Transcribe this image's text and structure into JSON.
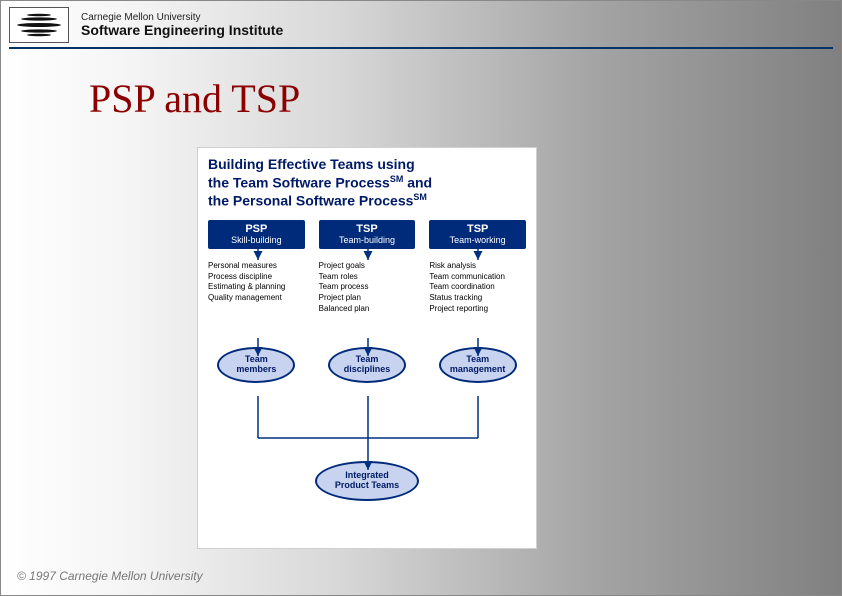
{
  "header": {
    "university": "Carnegie Mellon University",
    "institute": "Software Engineering Institute"
  },
  "title": "PSP and TSP",
  "footer": "© 1997 Carnegie Mellon University",
  "diagram": {
    "title_line1": "Building Effective Teams using",
    "title_line2_a": "the Team Software Process",
    "title_line2_sup": "SM",
    "title_line2_b": " and",
    "title_line3_a": "the Personal Software Process",
    "title_line3_sup": "SM",
    "colors": {
      "header_bg": "#002a7a",
      "header_fg": "#ffffff",
      "ellipse_fill": "#c7d3ef",
      "ellipse_border": "#002a7a",
      "title_color": "#001a66",
      "connector": "#003080"
    },
    "columns": [
      {
        "hb": "PSP",
        "hs": "Skill-building",
        "desc": "Personal measures\nProcess discipline\nEstimating & planning\nQuality management",
        "ellipse": "Team\nmembers"
      },
      {
        "hb": "TSP",
        "hs": "Team-building",
        "desc": "Project goals\nTeam roles\nTeam process\nProject plan\nBalanced plan",
        "ellipse": "Team\ndisciplines"
      },
      {
        "hb": "TSP",
        "hs": "Team-working",
        "desc": "Risk analysis\nTeam communication\nTeam coordination\nStatus tracking\nProject reporting",
        "ellipse": "Team\nmanagement"
      }
    ],
    "integrated": "Integrated\nProduct Teams"
  }
}
